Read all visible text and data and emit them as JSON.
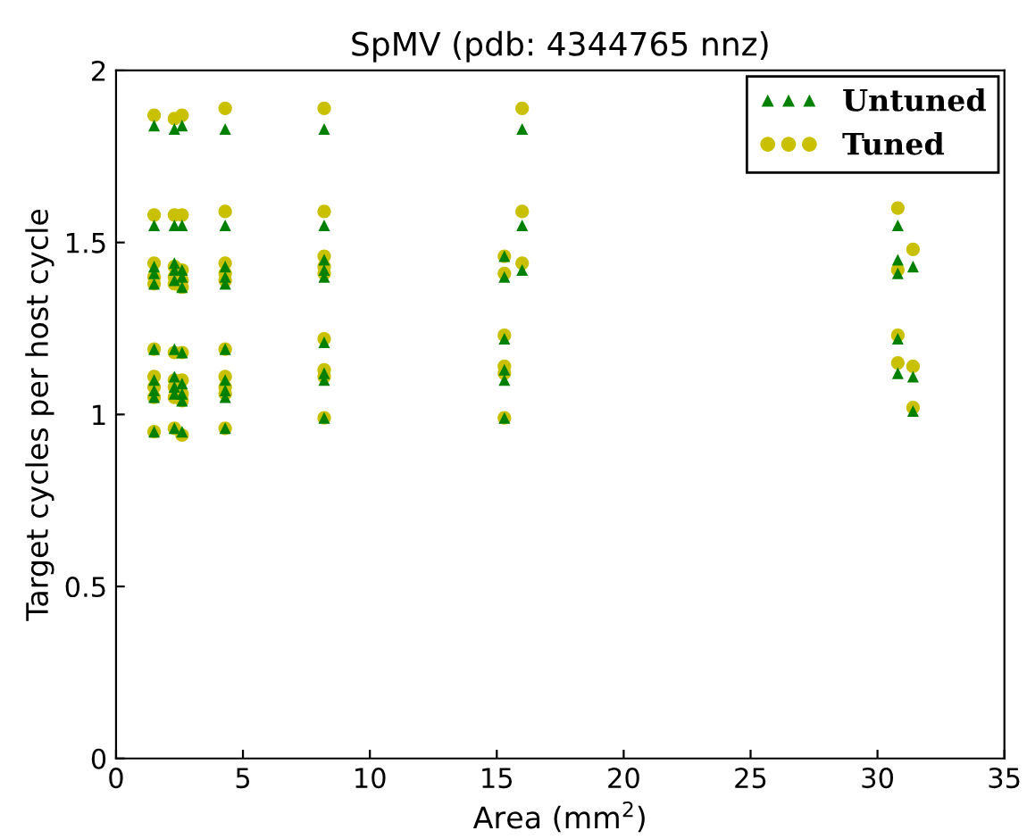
{
  "chart_data": {
    "type": "scatter",
    "title": "SpMV (pdb: 4344765 nnz)",
    "xlabel": "Area (mm$^{2}$)",
    "ylabel": "Target cycles per host cycle",
    "xlim": [
      0,
      35
    ],
    "xticks": [
      0,
      5,
      10,
      15,
      20,
      25,
      30,
      35
    ],
    "ylim": [
      0,
      2
    ],
    "yticks": [
      0,
      0.5,
      1,
      1.5,
      2
    ],
    "grid": false,
    "legend": "top right",
    "series": [
      {
        "name": "Untuned",
        "color": "#008000",
        "marker": "triangle",
        "x": [
          1.5,
          1.5,
          1.5,
          1.5,
          1.5,
          1.5,
          1.5,
          1.5,
          1.5,
          1.5,
          2.3,
          2.3,
          2.3,
          2.3,
          2.3,
          2.3,
          2.3,
          2.3,
          2.3,
          2.3,
          2.6,
          2.6,
          2.6,
          2.6,
          2.6,
          2.6,
          2.6,
          2.6,
          2.6,
          2.6,
          4.3,
          4.3,
          4.3,
          4.3,
          4.3,
          4.3,
          4.3,
          4.3,
          4.3,
          4.3,
          8.2,
          8.2,
          8.2,
          8.2,
          8.2,
          8.2,
          8.2,
          8.2,
          8.2,
          15.3,
          15.3,
          15.3,
          15.3,
          15.3,
          15.3,
          16.0,
          16.0,
          16.0,
          30.8,
          30.8,
          30.8,
          30.8,
          30.8,
          31.4,
          31.4,
          31.4
        ],
        "values": [
          1.84,
          1.55,
          1.43,
          1.41,
          1.38,
          1.19,
          1.1,
          1.07,
          1.05,
          0.95,
          1.83,
          1.55,
          1.44,
          1.42,
          1.39,
          1.19,
          1.11,
          1.08,
          1.06,
          0.96,
          1.84,
          1.55,
          1.42,
          1.4,
          1.37,
          1.18,
          1.09,
          1.06,
          1.04,
          0.95,
          1.83,
          1.55,
          1.43,
          1.4,
          1.38,
          1.19,
          1.1,
          1.07,
          1.05,
          0.96,
          1.83,
          1.55,
          1.45,
          1.42,
          1.4,
          1.21,
          1.12,
          1.1,
          0.99,
          1.46,
          1.4,
          1.22,
          1.13,
          1.1,
          0.99,
          1.83,
          1.55,
          1.42,
          1.55,
          1.45,
          1.41,
          1.22,
          1.12,
          1.43,
          1.11,
          1.01
        ]
      },
      {
        "name": "Tuned",
        "color": "#c8c000",
        "marker": "circle",
        "x": [
          1.5,
          1.5,
          1.5,
          1.5,
          1.5,
          1.5,
          1.5,
          1.5,
          1.5,
          1.5,
          2.3,
          2.3,
          2.3,
          2.3,
          2.3,
          2.3,
          2.3,
          2.3,
          2.3,
          2.3,
          2.6,
          2.6,
          2.6,
          2.6,
          2.6,
          2.6,
          2.6,
          2.6,
          2.6,
          2.6,
          4.3,
          4.3,
          4.3,
          4.3,
          4.3,
          4.3,
          4.3,
          4.3,
          4.3,
          4.3,
          8.2,
          8.2,
          8.2,
          8.2,
          8.2,
          8.2,
          8.2,
          8.2,
          8.2,
          15.3,
          15.3,
          15.3,
          15.3,
          15.3,
          15.3,
          16.0,
          16.0,
          16.0,
          30.8,
          30.8,
          30.8,
          30.8,
          31.4,
          31.4,
          31.4
        ],
        "values": [
          1.87,
          1.58,
          1.44,
          1.4,
          1.38,
          1.19,
          1.11,
          1.08,
          1.05,
          0.95,
          1.86,
          1.58,
          1.43,
          1.4,
          1.38,
          1.18,
          1.1,
          1.08,
          1.05,
          0.96,
          1.87,
          1.58,
          1.42,
          1.39,
          1.37,
          1.18,
          1.1,
          1.06,
          1.04,
          0.94,
          1.89,
          1.59,
          1.44,
          1.41,
          1.39,
          1.19,
          1.11,
          1.08,
          1.06,
          0.96,
          1.89,
          1.59,
          1.46,
          1.43,
          1.41,
          1.22,
          1.13,
          1.11,
          0.99,
          1.46,
          1.41,
          1.23,
          1.14,
          1.12,
          0.99,
          1.89,
          1.59,
          1.44,
          1.6,
          1.42,
          1.23,
          1.15,
          1.48,
          1.14,
          1.02
        ]
      }
    ]
  }
}
